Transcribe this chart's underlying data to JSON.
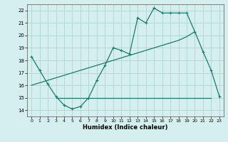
{
  "xlabel": "Humidex (Indice chaleur)",
  "bg_color": "#d5efee",
  "grid_color": "#b2d8d6",
  "line_color": "#1a7a6e",
  "xlim": [
    -0.5,
    23.5
  ],
  "ylim": [
    13.5,
    22.5
  ],
  "xticks": [
    0,
    1,
    2,
    3,
    4,
    5,
    6,
    7,
    8,
    9,
    10,
    11,
    12,
    13,
    14,
    15,
    16,
    17,
    18,
    19,
    20,
    21,
    22,
    23
  ],
  "yticks": [
    14,
    15,
    16,
    17,
    18,
    19,
    20,
    21,
    22
  ],
  "line1_x": [
    0,
    1,
    2,
    3,
    4,
    5,
    6,
    7,
    8,
    9,
    10,
    11,
    12,
    13,
    14,
    15,
    16,
    17,
    18,
    19,
    20,
    21,
    22,
    23
  ],
  "line1_y": [
    18.3,
    17.2,
    16.1,
    15.1,
    14.4,
    14.1,
    14.3,
    15.0,
    16.4,
    17.6,
    19.0,
    18.8,
    18.5,
    21.4,
    21.0,
    22.2,
    21.8,
    21.8,
    21.8,
    21.8,
    20.3,
    18.7,
    17.2,
    15.1
  ],
  "line2_x": [
    0,
    1,
    2,
    3,
    4,
    5,
    6,
    7,
    8,
    9,
    10,
    11,
    12,
    13,
    14,
    15,
    16,
    17,
    18,
    19,
    20
  ],
  "line2_y": [
    16.0,
    16.2,
    16.4,
    16.6,
    16.8,
    17.0,
    17.2,
    17.4,
    17.6,
    17.8,
    18.0,
    18.2,
    18.4,
    18.6,
    18.8,
    19.0,
    19.2,
    19.4,
    19.6,
    19.9,
    20.3
  ],
  "line3_x": [
    3,
    15,
    22
  ],
  "line3_y": [
    15.0,
    15.0,
    15.0
  ]
}
